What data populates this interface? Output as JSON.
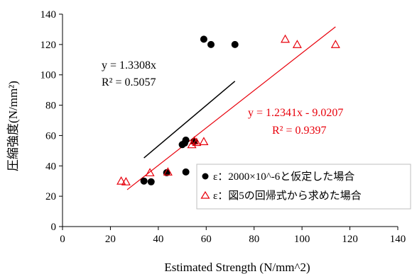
{
  "chart_data": {
    "type": "scatter",
    "xlabel": "Estimated Strength (N/mm^2)",
    "ylabel": "圧縮強度(N/mm²)",
    "xlim": [
      0,
      140
    ],
    "ylim": [
      0,
      140
    ],
    "x_ticks": [
      "0",
      "20",
      "40",
      "60",
      "80",
      "100",
      "120",
      "140"
    ],
    "y_ticks": [
      "0",
      "20",
      "40",
      "60",
      "80",
      "100",
      "120",
      "140"
    ],
    "grid": false,
    "legend_position": "bottom-right",
    "series": [
      {
        "name": "ε：2000×10^-6と仮定した場合",
        "marker": "filled-circle",
        "color": "#000000",
        "points": [
          [
            34,
            30
          ],
          [
            37,
            29.5
          ],
          [
            43.5,
            35.5
          ],
          [
            50,
            54
          ],
          [
            51.5,
            57
          ],
          [
            51,
            55
          ],
          [
            51.5,
            36
          ],
          [
            55,
            56
          ],
          [
            59,
            123.5
          ],
          [
            62,
            120
          ],
          [
            72,
            120
          ]
        ],
        "trendline": {
          "x_range": [
            34,
            72
          ],
          "equation": "y = 1.3308x",
          "r2": "R² = 0.5057"
        }
      },
      {
        "name": "ε：図5の回帰式から求めた場合",
        "marker": "open-triangle",
        "color": "#e8000b",
        "points": [
          [
            24.5,
            30
          ],
          [
            26.5,
            29.5
          ],
          [
            36.5,
            35.5
          ],
          [
            44,
            36
          ],
          [
            54,
            54
          ],
          [
            55,
            56.5
          ],
          [
            56,
            55.5
          ],
          [
            59,
            56
          ],
          [
            93,
            123.5
          ],
          [
            98,
            120
          ],
          [
            114,
            120
          ]
        ],
        "trendline": {
          "x_range": [
            27,
            114
          ],
          "equation": "y = 1.2341x - 9.0207",
          "r2": "R² = 0.9397"
        }
      }
    ]
  }
}
